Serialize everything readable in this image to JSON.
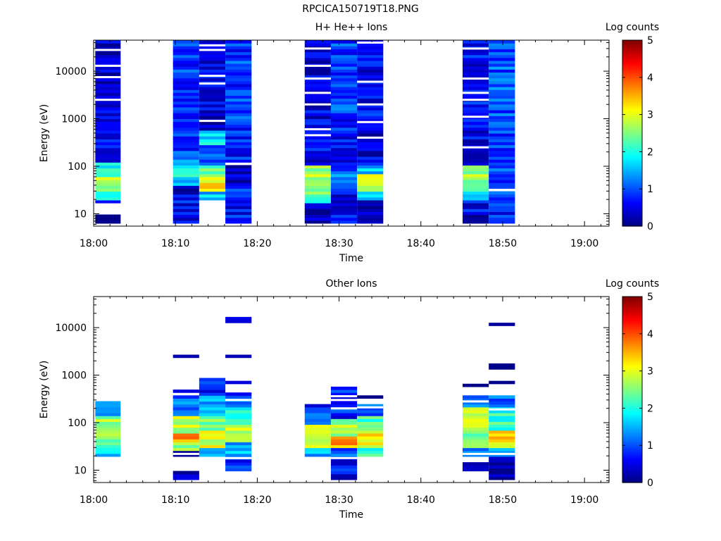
{
  "figure_title": "RPCICA150719T18.PNG",
  "colorscale": [
    "#000080",
    "#0000ff",
    "#0080ff",
    "#00ffff",
    "#80ff80",
    "#ffff00",
    "#ff8000",
    "#ff0000",
    "#800000"
  ],
  "chart_data": [
    {
      "type": "heatmap",
      "title": "H+ He++ Ions",
      "xlabel": "Time",
      "ylabel": "Energy (eV)",
      "xlim": [
        0,
        63
      ],
      "x_ticks": [
        0,
        10,
        20,
        30,
        40,
        50,
        60
      ],
      "x_tick_labels": [
        "18:00",
        "18:10",
        "18:20",
        "18:30",
        "18:40",
        "18:50",
        "19:00"
      ],
      "ylim": [
        5.5,
        45000
      ],
      "y_scale": "log",
      "y_ticks": [
        10,
        100,
        1000,
        10000
      ],
      "y_tick_labels": [
        "10",
        "100",
        "1000",
        "10000"
      ],
      "colorbar": {
        "label": "Log counts",
        "min": 0,
        "max": 5,
        "ticks": [
          "0",
          "1",
          "2",
          "3",
          "4",
          "5"
        ]
      },
      "time_bins": [
        {
          "t0": 0.2,
          "t1": 3.3,
          "profile": [
            [
              6,
              10,
              0.2
            ],
            [
              10,
              16,
              null
            ],
            [
              16,
              20,
              0.8
            ],
            [
              20,
              30,
              1.7
            ],
            [
              30,
              60,
              2.6
            ],
            [
              60,
              130,
              1.9
            ],
            [
              130,
              2000,
              0.5
            ],
            [
              2000,
              45000,
              0.4
            ]
          ]
        },
        {
          "t0": 9.7,
          "t1": 12.9,
          "profile": [
            [
              6,
              30,
              0.6
            ],
            [
              30,
              40,
              0.2
            ],
            [
              40,
              60,
              1.7
            ],
            [
              60,
              100,
              2.1
            ],
            [
              100,
              200,
              1.2
            ],
            [
              200,
              1000,
              0.7
            ],
            [
              1000,
              45000,
              0.9
            ]
          ]
        },
        {
          "t0": 12.9,
          "t1": 16.1,
          "profile": [
            [
              6,
              20,
              null
            ],
            [
              20,
              30,
              1.5
            ],
            [
              30,
              60,
              3.1
            ],
            [
              60,
              100,
              2.3
            ],
            [
              100,
              300,
              0.9
            ],
            [
              300,
              600,
              1.8
            ],
            [
              600,
              2000,
              0.4
            ],
            [
              2000,
              45000,
              0.5
            ]
          ]
        },
        {
          "t0": 16.1,
          "t1": 19.3,
          "profile": [
            [
              6,
              40,
              0.7
            ],
            [
              40,
              100,
              0.3
            ],
            [
              100,
              120,
              null
            ],
            [
              120,
              1000,
              0.7
            ],
            [
              1000,
              45000,
              0.9
            ]
          ]
        },
        {
          "t0": 25.8,
          "t1": 29.0,
          "profile": [
            [
              6,
              16,
              0.2
            ],
            [
              16,
              30,
              2.4
            ],
            [
              30,
              100,
              2.6
            ],
            [
              100,
              1000,
              0.6
            ],
            [
              1000,
              45000,
              0.5
            ]
          ]
        },
        {
          "t0": 29.0,
          "t1": 32.2,
          "profile": [
            [
              6,
              20,
              0.6
            ],
            [
              20,
              30,
              0.4
            ],
            [
              30,
              100,
              1.1
            ],
            [
              100,
              1000,
              0.7
            ],
            [
              1000,
              45000,
              0.9
            ]
          ]
        },
        {
          "t0": 32.2,
          "t1": 35.4,
          "profile": [
            [
              6,
              20,
              0.1
            ],
            [
              20,
              30,
              1.6
            ],
            [
              30,
              70,
              2.9
            ],
            [
              70,
              100,
              1.6
            ],
            [
              100,
              1000,
              0.5
            ],
            [
              1000,
              45000,
              0.6
            ]
          ]
        },
        {
          "t0": 45.1,
          "t1": 48.3,
          "profile": [
            [
              6,
              10,
              0.1
            ],
            [
              10,
              20,
              0.6
            ],
            [
              20,
              30,
              1.6
            ],
            [
              30,
              100,
              2.7
            ],
            [
              100,
              1000,
              0.5
            ],
            [
              1000,
              45000,
              0.6
            ]
          ]
        },
        {
          "t0": 48.3,
          "t1": 51.5,
          "profile": [
            [
              6,
              30,
              0.8
            ],
            [
              30,
              35,
              null
            ],
            [
              35,
              100,
              1.0
            ],
            [
              100,
              1000,
              0.9
            ],
            [
              1000,
              45000,
              1.0
            ]
          ]
        }
      ],
      "cell_gaps": [
        {
          "t0": 0.2,
          "t1": 3.3,
          "y": [
            28000,
            2500,
            13000,
            7500
          ]
        },
        {
          "t0": 12.9,
          "t1": 16.1,
          "y": [
            35000,
            28000,
            8000,
            5500,
            900
          ]
        },
        {
          "t0": 25.8,
          "t1": 29.0,
          "y": [
            30000,
            13000,
            7000,
            3500,
            2000,
            600,
            450
          ]
        },
        {
          "t0": 32.2,
          "t1": 35.4,
          "y": [
            40000,
            6000,
            2000,
            850,
            400
          ]
        },
        {
          "t0": 45.1,
          "t1": 48.3,
          "y": [
            30000,
            7000,
            3500,
            2500,
            1100,
            250
          ]
        }
      ]
    },
    {
      "type": "heatmap",
      "title": "Other Ions",
      "xlabel": "Time",
      "ylabel": "Energy (eV)",
      "xlim": [
        0,
        63
      ],
      "x_ticks": [
        0,
        10,
        20,
        30,
        40,
        50,
        60
      ],
      "x_tick_labels": [
        "18:00",
        "18:10",
        "18:20",
        "18:30",
        "18:40",
        "18:50",
        "19:00"
      ],
      "ylim": [
        5.5,
        45000
      ],
      "y_scale": "log",
      "y_ticks": [
        10,
        100,
        1000,
        10000
      ],
      "y_tick_labels": [
        "10",
        "100",
        "1000",
        "10000"
      ],
      "colorbar": {
        "label": "Log counts",
        "min": 0,
        "max": 5,
        "ticks": [
          "0",
          "1",
          "2",
          "3",
          "4",
          "5"
        ]
      },
      "time_bins": [
        {
          "t0": 0.2,
          "t1": 3.3,
          "profile": [
            [
              20,
              30,
              1.7
            ],
            [
              30,
              60,
              2.5
            ],
            [
              60,
              150,
              2.7
            ],
            [
              150,
              280,
              1.0
            ]
          ]
        },
        {
          "t0": 9.7,
          "t1": 12.9,
          "profile": [
            [
              6,
              10,
              0.1
            ],
            [
              20,
              25,
              0.4
            ],
            [
              25,
              40,
              2.6
            ],
            [
              40,
              60,
              3.5
            ],
            [
              60,
              150,
              2.9
            ],
            [
              150,
              400,
              1.1
            ],
            [
              450,
              500,
              0.1
            ],
            [
              2400,
              2600,
              0.1
            ]
          ]
        },
        {
          "t0": 12.9,
          "t1": 16.1,
          "profile": [
            [
              20,
              30,
              1.4
            ],
            [
              30,
              70,
              3.0
            ],
            [
              70,
              150,
              2.5
            ],
            [
              150,
              400,
              1.6
            ],
            [
              400,
              900,
              0.7
            ]
          ]
        },
        {
          "t0": 16.1,
          "t1": 19.3,
          "profile": [
            [
              10,
              20,
              0.7
            ],
            [
              20,
              40,
              1.6
            ],
            [
              40,
              90,
              2.7
            ],
            [
              90,
              200,
              2.1
            ],
            [
              200,
              350,
              1.2
            ],
            [
              350,
              420,
              0.3
            ],
            [
              680,
              720,
              0.1
            ],
            [
              950,
              1050,
              0.1
            ],
            [
              2400,
              2600,
              0.1
            ],
            [
              13500,
              14500,
              0.1
            ],
            [
              15500,
              16500,
              0.1
            ],
            [
              18500,
              19500,
              0.1
            ],
            [
              21000,
              22000,
              0.1
            ]
          ]
        },
        {
          "t0": 25.8,
          "t1": 29.0,
          "profile": [
            [
              20,
              30,
              1.6
            ],
            [
              30,
              90,
              2.7
            ],
            [
              90,
              200,
              1.2
            ],
            [
              215,
              235,
              0.1
            ]
          ]
        },
        {
          "t0": 29.0,
          "t1": 32.2,
          "profile": [
            [
              6,
              20,
              0.6
            ],
            [
              20,
              30,
              1.2
            ],
            [
              30,
              50,
              3.6
            ],
            [
              50,
              120,
              2.6
            ],
            [
              120,
              600,
              0.8
            ],
            [
              25000,
              26000,
              0.1
            ],
            [
              37000,
              39000,
              0.1
            ]
          ]
        },
        {
          "t0": 32.2,
          "t1": 35.4,
          "profile": [
            [
              20,
              30,
              2.2
            ],
            [
              30,
              70,
              3.2
            ],
            [
              70,
              150,
              2.1
            ],
            [
              150,
              250,
              0.9
            ],
            [
              330,
              360,
              0.1
            ]
          ]
        },
        {
          "t0": 45.1,
          "t1": 48.3,
          "profile": [
            [
              10,
              15,
              0.1
            ],
            [
              20,
              30,
              1.3
            ],
            [
              30,
              70,
              2.5
            ],
            [
              70,
              200,
              2.9
            ],
            [
              200,
              380,
              1.1
            ],
            [
              580,
              640,
              0.1
            ],
            [
              2900,
              3100,
              0.1
            ]
          ]
        },
        {
          "t0": 48.3,
          "t1": 51.5,
          "profile": [
            [
              6,
              20,
              0.1
            ],
            [
              20,
              30,
              1.2
            ],
            [
              30,
              70,
              3.3
            ],
            [
              70,
              200,
              2.1
            ],
            [
              200,
              400,
              1.0
            ],
            [
              700,
              800,
              0.1
            ],
            [
              1400,
              1500,
              0.1
            ],
            [
              1550,
              1650,
              0.1
            ],
            [
              3500,
              3700,
              0.1
            ],
            [
              11500,
              12500,
              0.1
            ]
          ]
        }
      ],
      "cell_gaps": [
        {
          "t0": 9.7,
          "t1": 12.9,
          "y": [
            22
          ]
        },
        {
          "t0": 16.1,
          "t1": 19.3,
          "y": [
            18,
            300
          ]
        },
        {
          "t0": 29.0,
          "t1": 32.2,
          "y": [
            18,
            300,
            360,
            200
          ]
        },
        {
          "t0": 32.2,
          "t1": 35.4,
          "y": [
            210
          ]
        },
        {
          "t0": 45.1,
          "t1": 48.3,
          "y": [
            22,
            280
          ]
        },
        {
          "t0": 48.3,
          "t1": 51.5,
          "y": [
            22,
            190
          ]
        }
      ]
    }
  ]
}
